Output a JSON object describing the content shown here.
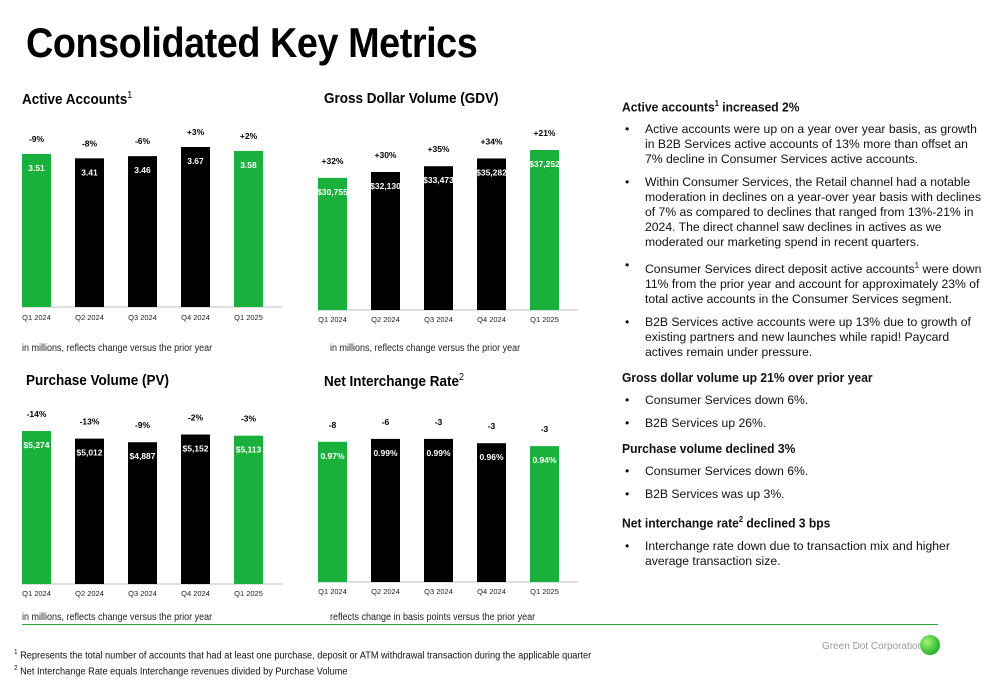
{
  "page": {
    "title": "Consolidated Key Metrics"
  },
  "colors": {
    "green": "#1ab03c",
    "black": "#000000",
    "divider": "#22aa44"
  },
  "charts": {
    "active_accounts": {
      "title": "Active Accounts",
      "title_sup": "1",
      "note": "in millions, reflects change versus the prior year"
    },
    "gdv": {
      "title": "Gross Dollar Volume (GDV)",
      "title_sup": "",
      "note": "in millions, reflects change versus the prior year"
    },
    "purchase_volume": {
      "title": "Purchase Volume (PV)",
      "title_sup": "",
      "note": "in millions, reflects change versus the prior year"
    },
    "interchange": {
      "title": "Net Interchange Rate",
      "title_sup": "2",
      "note": "reflects change in basis points versus the prior year"
    }
  },
  "chart_data": [
    {
      "type": "bar",
      "title": "Active Accounts",
      "categories": [
        "Q1 2024",
        "Q2 2024",
        "Q3 2024",
        "Q4 2024",
        "Q1 2025"
      ],
      "values": [
        3.51,
        3.41,
        3.46,
        3.67,
        3.58
      ],
      "value_labels": [
        "3.51",
        "3.41",
        "3.46",
        "3.67",
        "3.58"
      ],
      "change_labels": [
        "-9%",
        "-8%",
        "-6%",
        "+3%",
        "+2%"
      ],
      "bar_colors": [
        "#1ab03c",
        "#000000",
        "#000000",
        "#000000",
        "#1ab03c"
      ]
    },
    {
      "type": "bar",
      "title": "Gross Dollar Volume (GDV)",
      "categories": [
        "Q1 2024",
        "Q2 2024",
        "Q3 2024",
        "Q4 2024",
        "Q1 2025"
      ],
      "values": [
        30755,
        32130,
        33473,
        35282,
        37252
      ],
      "value_labels": [
        "$30,755",
        "$32,130",
        "$33,473",
        "$35,282",
        "$37,252"
      ],
      "change_labels": [
        "+32%",
        "+30%",
        "+35%",
        "+34%",
        "+21%"
      ],
      "bar_colors": [
        "#1ab03c",
        "#000000",
        "#000000",
        "#000000",
        "#1ab03c"
      ]
    },
    {
      "type": "bar",
      "title": "Purchase Volume (PV)",
      "categories": [
        "Q1 2024",
        "Q2 2024",
        "Q3 2024",
        "Q4 2024",
        "Q1 2025"
      ],
      "values": [
        5274,
        5012,
        4887,
        5152,
        5113
      ],
      "value_labels": [
        "$5,274",
        "$5,012",
        "$4,887",
        "$5,152",
        "$5,113"
      ],
      "change_labels": [
        "-14%",
        "-13%",
        "-9%",
        "-2%",
        "-3%"
      ],
      "bar_colors": [
        "#1ab03c",
        "#000000",
        "#000000",
        "#000000",
        "#1ab03c"
      ]
    },
    {
      "type": "bar",
      "title": "Net Interchange Rate",
      "categories": [
        "Q1 2024",
        "Q2 2024",
        "Q3 2024",
        "Q4 2024",
        "Q1 2025"
      ],
      "values": [
        0.97,
        0.99,
        0.99,
        0.96,
        0.94
      ],
      "value_labels": [
        "0.97%",
        "0.99%",
        "0.99%",
        "0.96%",
        "0.94%"
      ],
      "change_labels": [
        "-8",
        "-6",
        "-3",
        "-3",
        "-3"
      ],
      "bar_colors": [
        "#1ab03c",
        "#000000",
        "#000000",
        "#000000",
        "#1ab03c"
      ]
    }
  ],
  "commentary": {
    "sections": [
      {
        "heading_pre": "Active accounts",
        "heading_sup": "1",
        "heading_post": " increased 2%",
        "bullets": [
          {
            "pre": "Active accounts were up on a year over year basis, as growth in B2B Services active accounts of 13% more than offset an 7% decline in Consumer Services active accounts.",
            "sup": "",
            "post": ""
          },
          {
            "pre": "Within Consumer Services, the Retail channel had a notable moderation in declines on a year-over year basis with declines of 7% as compared to declines that ranged from 13%-21% in 2024. The direct channel saw declines in actives as we moderated our marketing spend in recent quarters.",
            "sup": "",
            "post": ""
          },
          {
            "pre": "Consumer Services direct deposit active accounts",
            "sup": "1",
            "post": " were down 11% from the prior year and account for approximately 23% of total active accounts in the Consumer Services segment."
          },
          {
            "pre": "B2B Services active accounts were up 13% due to growth of existing partners and new launches while rapid! Paycard actives remain under pressure.",
            "sup": "",
            "post": ""
          }
        ]
      },
      {
        "heading_pre": " Gross dollar volume up 21% over prior year",
        "heading_sup": "",
        "heading_post": "",
        "bullets": [
          {
            "pre": "Consumer Services down 6%.",
            "sup": "",
            "post": ""
          },
          {
            "pre": "B2B Services up 26%.",
            "sup": "",
            "post": ""
          }
        ]
      },
      {
        "heading_pre": "Purchase volume declined 3%",
        "heading_sup": "",
        "heading_post": "",
        "bullets": [
          {
            "pre": "Consumer Services down 6%.",
            "sup": "",
            "post": ""
          },
          {
            "pre": "B2B Services was up 3%.",
            "sup": "",
            "post": ""
          }
        ]
      },
      {
        "heading_pre": "Net interchange rate",
        "heading_sup": "2",
        "heading_post": " declined 3 bps",
        "bullets": [
          {
            "pre": "Interchange rate down due to transaction mix and higher average transaction size.",
            "sup": "",
            "post": ""
          }
        ]
      }
    ]
  },
  "footnotes": {
    "fn1_sup": "1",
    "fn1": " Represents the total number of accounts that had at least one purchase, deposit or ATM withdrawal transaction during the applicable quarter",
    "fn2_sup": "2",
    "fn2": " Net Interchange Rate equals Interchange revenues divided by Purchase Volume"
  },
  "brand": {
    "name": "Green Dot Corporation"
  }
}
